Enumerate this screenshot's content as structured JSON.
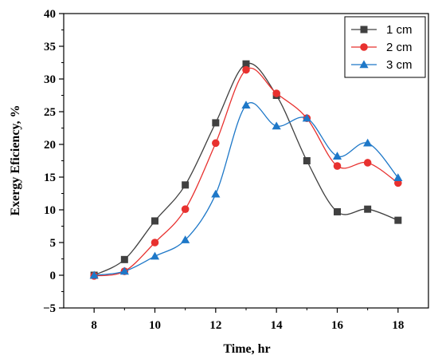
{
  "chart_data": {
    "type": "line",
    "xlabel": "Time, hr",
    "ylabel": "Exergy Eficiency, %",
    "xlim": [
      7,
      19
    ],
    "ylim": [
      -5,
      40
    ],
    "xticks": [
      8,
      10,
      12,
      14,
      16,
      18
    ],
    "yticks": [
      -5,
      0,
      5,
      10,
      15,
      20,
      25,
      30,
      35,
      40
    ],
    "grid": false,
    "legend_position": "top-right",
    "x": [
      8,
      9,
      10,
      11,
      12,
      13,
      14,
      15,
      16,
      17,
      18
    ],
    "series": [
      {
        "name": "1 cm",
        "color": "#404040",
        "marker": "square",
        "values": [
          0,
          2.4,
          8.3,
          13.8,
          23.3,
          32.3,
          27.5,
          17.5,
          9.7,
          10.1,
          8.4
        ]
      },
      {
        "name": "2 cm",
        "color": "#e8312f",
        "marker": "circle",
        "values": [
          -0.1,
          0.6,
          5.0,
          10.1,
          20.2,
          31.4,
          27.8,
          24.0,
          16.7,
          17.2,
          14.1
        ]
      },
      {
        "name": "3 cm",
        "color": "#1e78c8",
        "marker": "triangle",
        "values": [
          0,
          0.6,
          2.9,
          5.4,
          12.4,
          26.0,
          22.8,
          24.0,
          18.2,
          20.2,
          14.9
        ]
      }
    ]
  }
}
